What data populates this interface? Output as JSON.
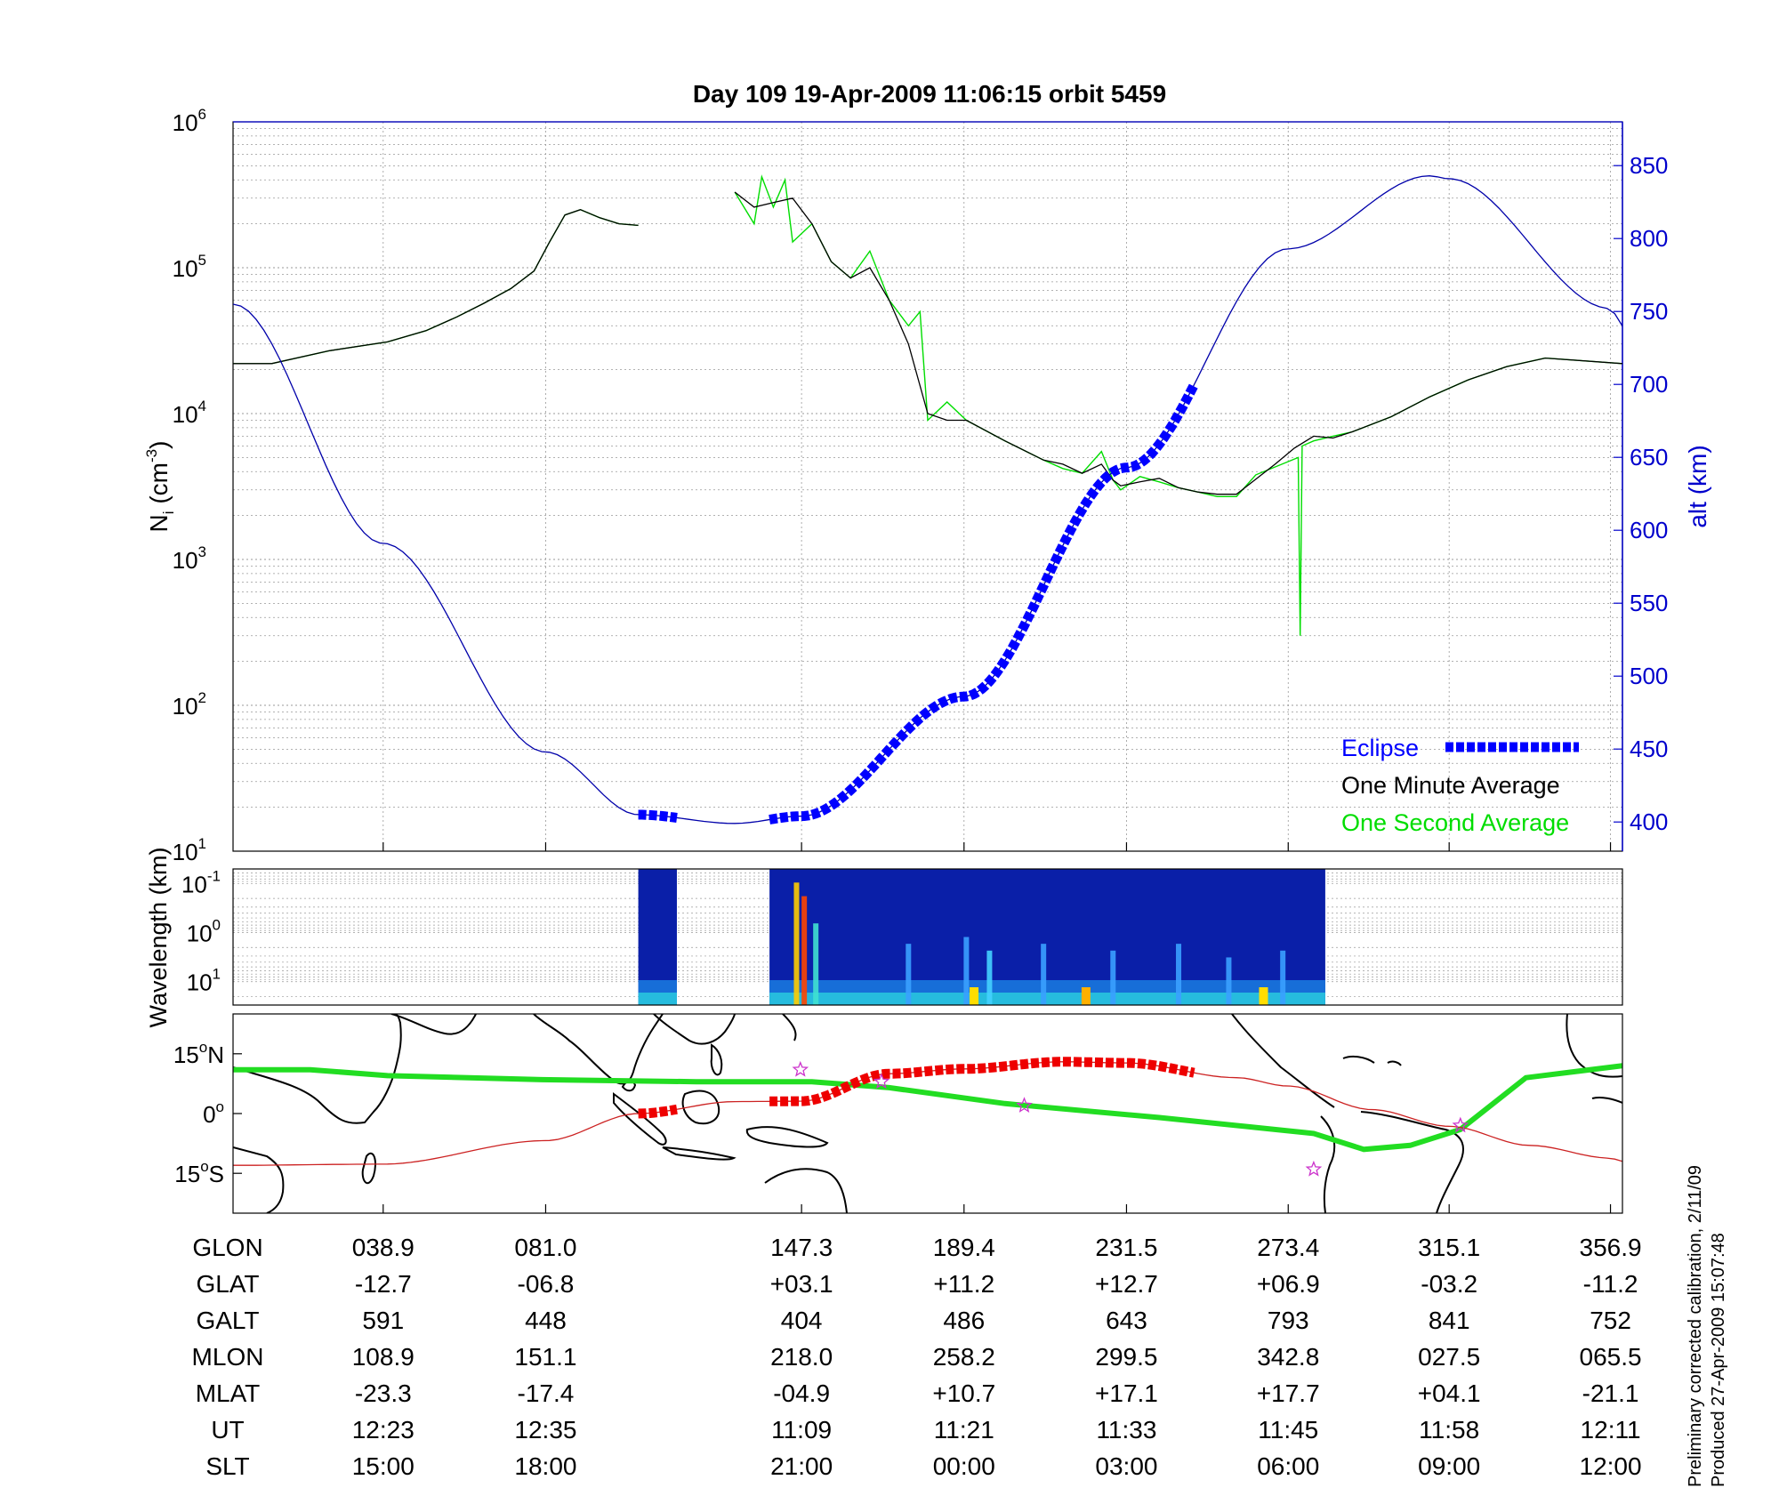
{
  "title": "Day 109  19-Apr-2009 11:06:15   orbit 5459",
  "colors": {
    "eclipse": "#0000ff",
    "one_minute": "#000000",
    "one_second": "#00dd00",
    "altitude_line": "#0000aa",
    "axis_right": "#0000cc",
    "ground_track": "#22dd22",
    "orbit_track": "#cc2222",
    "eclipse_track": "#ee0000",
    "star": "#cc33cc"
  },
  "axes": {
    "left_label_base": "N",
    "left_label_sub": "i",
    "left_label_unit": " (cm",
    "left_label_exp": "-3",
    "left_label_close": ")",
    "right_label": "alt (km)",
    "wavelength_label": "Wavelength (km)",
    "left_ticks": [
      {
        "base": "10",
        "exp": "1"
      },
      {
        "base": "10",
        "exp": "2"
      },
      {
        "base": "10",
        "exp": "3"
      },
      {
        "base": "10",
        "exp": "4"
      },
      {
        "base": "10",
        "exp": "5"
      },
      {
        "base": "10",
        "exp": "6"
      }
    ],
    "right_ticks": [
      "400",
      "450",
      "500",
      "550",
      "600",
      "650",
      "700",
      "750",
      "800",
      "850"
    ],
    "wavelength_ticks": [
      {
        "base": "10",
        "exp": "-1"
      },
      {
        "base": "10",
        "exp": "0"
      },
      {
        "base": "10",
        "exp": "1"
      }
    ],
    "map_lat_ticks": [
      {
        "val": "15",
        "deg": "o",
        "hem": "N"
      },
      {
        "val": "0",
        "deg": "o",
        "hem": ""
      },
      {
        "val": "15",
        "deg": "o",
        "hem": "S"
      }
    ]
  },
  "legend": {
    "eclipse": "Eclipse",
    "one_minute": "One Minute Average",
    "one_second": "One Second Average"
  },
  "table": {
    "row_labels": [
      "GLON",
      "GLAT",
      "GALT",
      "MLON",
      "MLAT",
      "UT",
      "SLT"
    ],
    "columns": [
      [
        "038.9",
        "-12.7",
        "591",
        "108.9",
        "-23.3",
        "12:23",
        "15:00"
      ],
      [
        "081.0",
        "-06.8",
        "448",
        "151.1",
        "-17.4",
        "12:35",
        "18:00"
      ],
      [
        "147.3",
        "+03.1",
        "404",
        "218.0",
        "-04.9",
        "11:09",
        "21:00"
      ],
      [
        "189.4",
        "+11.2",
        "486",
        "258.2",
        "+10.7",
        "11:21",
        "00:00"
      ],
      [
        "231.5",
        "+12.7",
        "643",
        "299.5",
        "+17.1",
        "11:33",
        "03:00"
      ],
      [
        "273.4",
        "+06.9",
        "793",
        "342.8",
        "+17.7",
        "11:45",
        "06:00"
      ],
      [
        "315.1",
        "-03.2",
        "841",
        "027.5",
        "+04.1",
        "11:58",
        "09:00"
      ],
      [
        "356.9",
        "-11.2",
        "752",
        "065.5",
        "-21.1",
        "12:11",
        "12:00"
      ]
    ]
  },
  "notes": {
    "line1": "Preliminary corrected calibration, 2/11/09",
    "line2": "Produced 27-Apr-2009 15:07:48"
  },
  "chart_data": [
    {
      "type": "line",
      "x_axis": "GLON (deg)",
      "xlim": [
        0,
        360
      ],
      "y_scale": "log",
      "ylim": [
        10,
        1000000
      ],
      "y2lim": [
        380,
        880
      ],
      "series": [
        {
          "name": "One Minute Average",
          "x": [
            0,
            10,
            25,
            40,
            50,
            58,
            65,
            72,
            78,
            82,
            86,
            90,
            95,
            100,
            105,
            112,
            118,
            125,
            130,
            135,
            140,
            145,
            150,
            155,
            160,
            165,
            170,
            175,
            180,
            185,
            190,
            200,
            210,
            215,
            220,
            225,
            228,
            230,
            235,
            240,
            245,
            250,
            255,
            260,
            270,
            275,
            280,
            285,
            290,
            300,
            310,
            320,
            330,
            340,
            350,
            360
          ],
          "values": [
            22000,
            22000,
            27000,
            31000,
            37000,
            46000,
            57000,
            72000,
            95000,
            150000,
            230000,
            250000,
            220000,
            200000,
            195000,
            null,
            null,
            null,
            330000,
            260000,
            280000,
            300000,
            200000,
            110000,
            85000,
            100000,
            60000,
            30000,
            10000,
            9000,
            9000,
            6500,
            4800,
            4500,
            3900,
            4500,
            3500,
            3200,
            3400,
            3600,
            3100,
            2900,
            2800,
            2800,
            4500,
            5800,
            7000,
            6800,
            7500,
            9500,
            13000,
            17000,
            21000,
            24000,
            23000,
            22000
          ]
        },
        {
          "name": "One Second Average",
          "x": [
            0,
            10,
            25,
            40,
            50,
            58,
            65,
            72,
            78,
            82,
            86,
            90,
            95,
            100,
            105,
            112,
            118,
            125,
            130,
            135,
            137,
            140,
            143,
            145,
            150,
            155,
            160,
            165,
            170,
            175,
            178,
            180,
            185,
            190,
            200,
            210,
            215,
            220,
            225,
            228,
            230,
            235,
            240,
            245,
            250,
            255,
            260,
            265,
            276,
            276.5,
            277,
            280,
            285,
            290,
            300,
            310,
            320,
            330,
            340,
            350,
            360
          ],
          "values": [
            22000,
            22000,
            27000,
            31000,
            37000,
            46000,
            57000,
            72000,
            95000,
            150000,
            230000,
            250000,
            220000,
            200000,
            195000,
            null,
            null,
            null,
            330000,
            200000,
            420000,
            260000,
            400000,
            150000,
            200000,
            110000,
            85000,
            130000,
            60000,
            40000,
            50000,
            9000,
            12000,
            9000,
            6500,
            4800,
            4200,
            3900,
            5500,
            3500,
            3000,
            3700,
            3400,
            3100,
            2900,
            2700,
            2700,
            3800,
            5000,
            300,
            6000,
            6500,
            7000,
            7500,
            9500,
            13000,
            17000,
            21000,
            24000,
            23000,
            22000
          ]
        },
        {
          "name": "alt (km)",
          "axis": "right",
          "x": [
            0,
            38.9,
            81.0,
            105,
            130,
            147.3,
            189.4,
            231.5,
            273.4,
            310,
            315.1,
            356.9,
            360
          ],
          "values": [
            755,
            591,
            448,
            405,
            399,
            404,
            486,
            643,
            793,
            843,
            841,
            752,
            740
          ]
        },
        {
          "name": "Eclipse",
          "axis": "right",
          "segments": [
            [
              105,
              115
            ],
            [
              139,
              249
            ]
          ]
        }
      ]
    },
    {
      "type": "heatmap",
      "y_scale": "log",
      "ylim": [
        0.05,
        30
      ],
      "data_segments": [
        [
          105,
          115
        ],
        [
          139,
          283
        ]
      ]
    },
    {
      "type": "line",
      "xlim": [
        0,
        360
      ],
      "ylim": [
        -25,
        25
      ],
      "series": [
        {
          "name": "ground track",
          "x": [
            0,
            20,
            40,
            80,
            120,
            150,
            170,
            200,
            240,
            280,
            293,
            305,
            318,
            335,
            360
          ],
          "values": [
            11,
            11,
            9.5,
            8.5,
            8,
            8,
            6.5,
            2.5,
            -1,
            -5,
            -9,
            -8,
            -4,
            9,
            12
          ]
        },
        {
          "name": "orbit track",
          "x": [
            0,
            38.9,
            81.0,
            105,
            130,
            147.3,
            170,
            189.4,
            215,
            231.5,
            260,
            273.4,
            295,
            315.1,
            336,
            356.9,
            360
          ],
          "values": [
            -13,
            -12.7,
            -6.8,
            0,
            3,
            3.1,
            10,
            11.2,
            13,
            12.7,
            9,
            6.9,
            1,
            -3.2,
            -8,
            -11.2,
            -12
          ]
        },
        {
          "name": "Eclipse",
          "segments": [
            [
              105,
              115
            ],
            [
              139,
              249
            ]
          ]
        }
      ]
    }
  ]
}
